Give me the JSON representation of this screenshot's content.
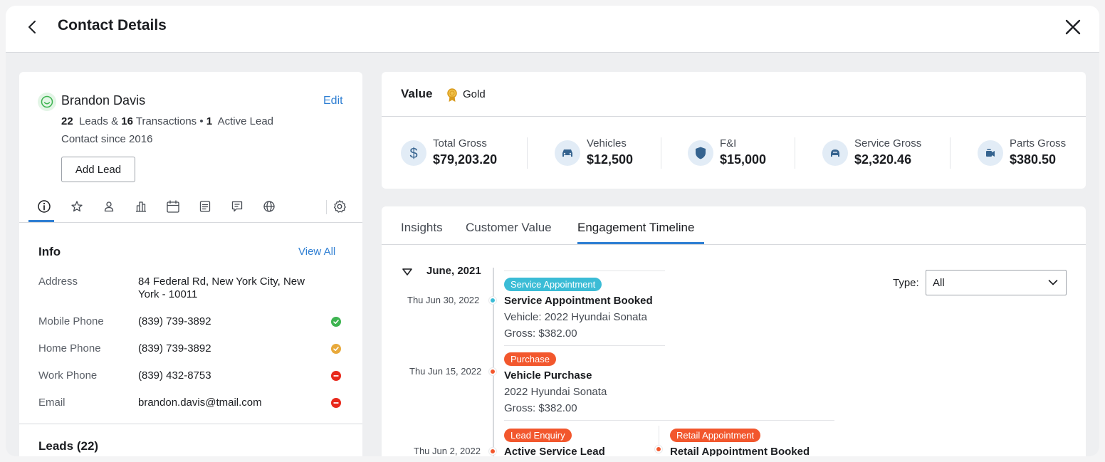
{
  "header": {
    "title": "Contact Details"
  },
  "contact": {
    "name": "Brandon Davis",
    "edit_label": "Edit",
    "leads_count": "22",
    "leads_text": "Leads &",
    "transactions_count": "16",
    "transactions_text": "Transactions",
    "bullet": "•",
    "active_count": "1",
    "active_text": "Active Lead",
    "since": "Contact since 2016",
    "add_lead_label": "Add Lead"
  },
  "icon_tabs": [
    "info-icon",
    "star-icon",
    "person-icon",
    "buildings-icon",
    "calendar-icon",
    "document-icon",
    "chat-icon",
    "globe-icon",
    "gear-icon"
  ],
  "info": {
    "title": "Info",
    "view_all_label": "View All",
    "rows": [
      {
        "label": "Address",
        "value": "84 Federal Rd, New York City, New York - 10011"
      },
      {
        "label": "Mobile Phone",
        "value": "(839) 739-3892",
        "status": "verified",
        "status_color": "#3db450"
      },
      {
        "label": "Home Phone",
        "value": "(839) 739-3892",
        "status": "warning",
        "status_color": "#e8a93b"
      },
      {
        "label": "Work Phone",
        "value": "(839) 432-8753",
        "status": "blocked",
        "status_color": "#e8291c"
      },
      {
        "label": "Email",
        "value": "brandon.davis@tmail.com",
        "status": "blocked",
        "status_color": "#e8291c"
      }
    ]
  },
  "leads": {
    "title": "Leads (22)"
  },
  "value": {
    "title": "Value",
    "tier": "Gold",
    "metrics": [
      {
        "label": "Total Gross",
        "value": "$79,203.20",
        "icon": "dollar-icon"
      },
      {
        "label": "Vehicles",
        "value": "$12,500",
        "icon": "car-icon"
      },
      {
        "label": "F&I",
        "value": "$15,000",
        "icon": "shield-icon"
      },
      {
        "label": "Service Gross",
        "value": "$2,320.46",
        "icon": "service-car-icon"
      },
      {
        "label": "Parts Gross",
        "value": "$380.50",
        "icon": "parts-icon"
      }
    ]
  },
  "timeline": {
    "tabs": [
      "Insights",
      "Customer Value",
      "Engagement Timeline"
    ],
    "active_tab": "Engagement Timeline",
    "month": "June, 2021",
    "type_label": "Type:",
    "type_value": "All",
    "events": [
      {
        "date": "Thu Jun 30, 2022",
        "badge": "Service Appointment",
        "badge_color": "#3bbcd6",
        "title": "Service Appointment Booked",
        "lines": [
          "Vehicle: 2022 Hyundai Sonata",
          "Gross: $382.00"
        ]
      },
      {
        "date": "Thu Jun 15, 2022",
        "badge": "Purchase",
        "badge_color": "#f2572d",
        "title": "Vehicle Purchase",
        "lines": [
          "2022 Hyundai Sonata",
          "Gross: $382.00"
        ]
      },
      {
        "date": "Thu Jun 2, 2022",
        "badge": "Lead Enquiry",
        "badge_color": "#f2572d",
        "title": "Active Service Lead",
        "lines": []
      },
      {
        "date": "",
        "badge": "Retail Appointment",
        "badge_color": "#f2572d",
        "title": "Retail Appointment Booked",
        "lines": []
      }
    ]
  }
}
